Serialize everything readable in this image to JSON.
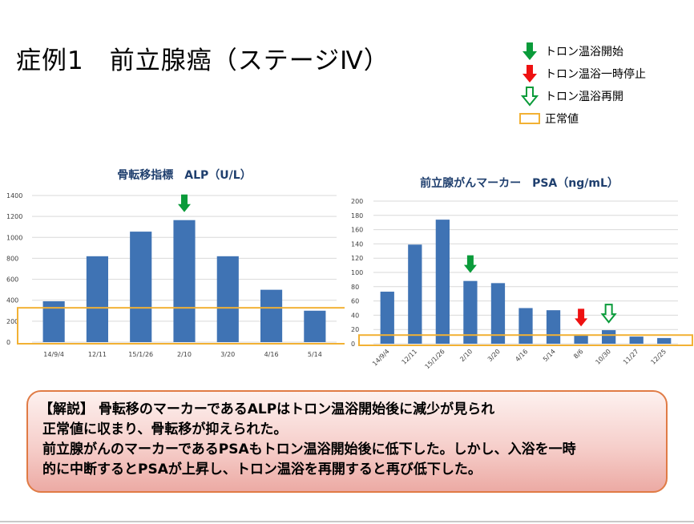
{
  "slide": {
    "title": "症例1　前立腺癌（ステージⅣ）"
  },
  "legend": {
    "items": [
      {
        "label": "トロン温浴開始",
        "icon": "green-down-arrow-icon",
        "color": "#0a9b3a"
      },
      {
        "label": "トロン温浴一時停止",
        "icon": "red-down-arrow-icon",
        "color": "#ee1111"
      },
      {
        "label": "トロン温浴再開",
        "icon": "hollow-green-down-arrow-icon",
        "color": "#0a9b3a"
      },
      {
        "label": "正常値",
        "icon": "orange-rectangle-icon",
        "color": "#f2b134"
      }
    ]
  },
  "chart_data": [
    {
      "type": "bar",
      "title": "骨転移指標　ALP（U/L）",
      "categories": [
        "14/9/4",
        "12/11",
        "15/1/26",
        "2/10",
        "3/20",
        "4/16",
        "5/14"
      ],
      "values": [
        390,
        820,
        1055,
        1165,
        820,
        500,
        300
      ],
      "ylim": [
        0,
        1400
      ],
      "yticks": [
        "0",
        "200",
        "400",
        "600",
        "800",
        "1000",
        "1200",
        "1400"
      ],
      "grid": true,
      "bar_color": "#3f73b4",
      "normal_range": [
        130,
        320
      ],
      "annotations": [
        {
          "category": "2/10",
          "marker": "start"
        }
      ]
    },
    {
      "type": "bar",
      "title": "前立腺がんマーカー　PSA（ng/mL）",
      "categories": [
        "14/9/4",
        "12/11",
        "15/1/26",
        "2/10",
        "3/20",
        "4/16",
        "5/14",
        "8/6",
        "10/30",
        "11/27",
        "12/25"
      ],
      "values": [
        73,
        139,
        174,
        88,
        85,
        50,
        47,
        13,
        19,
        10,
        8
      ],
      "ylim": [
        0,
        200
      ],
      "yticks": [
        "0",
        "20",
        "40",
        "60",
        "80",
        "100",
        "120",
        "140",
        "160",
        "180",
        "200"
      ],
      "grid": true,
      "bar_color": "#3f73b4",
      "normal_range": [
        0,
        11
      ],
      "annotations": [
        {
          "category": "2/10",
          "marker": "start"
        },
        {
          "category": "8/6",
          "marker": "pause"
        },
        {
          "category": "10/30",
          "marker": "resume"
        }
      ]
    }
  ],
  "note": {
    "lines": [
      "【解説】 骨転移のマーカーであるALPはトロン温浴開始後に減少が見られ",
      "正常値に収まり、骨転移が抑えられた。",
      "前立腺がんのマーカーであるPSAもトロン温浴開始後に低下した。しかし、入浴を一時",
      "的に中断するとPSAが上昇し、トロン温浴を再開すると再び低下した。"
    ]
  }
}
